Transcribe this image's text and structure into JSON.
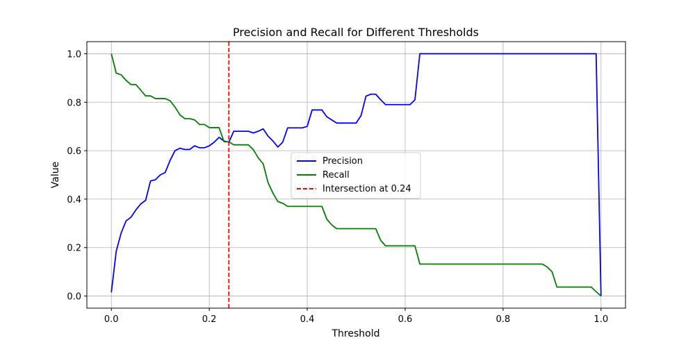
{
  "chart_data": {
    "type": "line",
    "title": "Precision and Recall for Different Thresholds",
    "xlabel": "Threshold",
    "ylabel": "Value",
    "xlim": [
      -0.05,
      1.05
    ],
    "ylim": [
      -0.05,
      1.05
    ],
    "xticks": [
      0.0,
      0.2,
      0.4,
      0.6,
      0.8,
      1.0
    ],
    "xtick_labels": [
      "0.0",
      "0.2",
      "0.4",
      "0.6",
      "0.8",
      "1.0"
    ],
    "yticks": [
      0.0,
      0.2,
      0.4,
      0.6,
      0.8,
      1.0
    ],
    "ytick_labels": [
      "0.0",
      "0.2",
      "0.4",
      "0.6",
      "0.8",
      "1.0"
    ],
    "grid": true,
    "legend_position": "center-right",
    "series": [
      {
        "name": "Precision",
        "color": "#0000ff",
        "points": [
          [
            0.0,
            0.015
          ],
          [
            0.01,
            0.185
          ],
          [
            0.02,
            0.26
          ],
          [
            0.03,
            0.31
          ],
          [
            0.04,
            0.325
          ],
          [
            0.05,
            0.355
          ],
          [
            0.06,
            0.38
          ],
          [
            0.07,
            0.395
          ],
          [
            0.08,
            0.475
          ],
          [
            0.09,
            0.48
          ],
          [
            0.1,
            0.5
          ],
          [
            0.11,
            0.51
          ],
          [
            0.12,
            0.56
          ],
          [
            0.13,
            0.6
          ],
          [
            0.14,
            0.61
          ],
          [
            0.15,
            0.605
          ],
          [
            0.16,
            0.605
          ],
          [
            0.17,
            0.62
          ],
          [
            0.18,
            0.612
          ],
          [
            0.19,
            0.612
          ],
          [
            0.2,
            0.62
          ],
          [
            0.21,
            0.635
          ],
          [
            0.22,
            0.655
          ],
          [
            0.23,
            0.64
          ],
          [
            0.24,
            0.635
          ],
          [
            0.25,
            0.68
          ],
          [
            0.26,
            0.68
          ],
          [
            0.27,
            0.68
          ],
          [
            0.28,
            0.68
          ],
          [
            0.29,
            0.673
          ],
          [
            0.3,
            0.68
          ],
          [
            0.31,
            0.69
          ],
          [
            0.32,
            0.66
          ],
          [
            0.33,
            0.64
          ],
          [
            0.34,
            0.615
          ],
          [
            0.35,
            0.635
          ],
          [
            0.36,
            0.694
          ],
          [
            0.37,
            0.694
          ],
          [
            0.38,
            0.694
          ],
          [
            0.39,
            0.694
          ],
          [
            0.4,
            0.7
          ],
          [
            0.41,
            0.768
          ],
          [
            0.42,
            0.768
          ],
          [
            0.43,
            0.768
          ],
          [
            0.44,
            0.74
          ],
          [
            0.45,
            0.727
          ],
          [
            0.46,
            0.714
          ],
          [
            0.47,
            0.714
          ],
          [
            0.48,
            0.714
          ],
          [
            0.49,
            0.714
          ],
          [
            0.5,
            0.714
          ],
          [
            0.51,
            0.745
          ],
          [
            0.52,
            0.825
          ],
          [
            0.53,
            0.833
          ],
          [
            0.54,
            0.833
          ],
          [
            0.55,
            0.81
          ],
          [
            0.56,
            0.79
          ],
          [
            0.57,
            0.79
          ],
          [
            0.58,
            0.79
          ],
          [
            0.59,
            0.79
          ],
          [
            0.6,
            0.79
          ],
          [
            0.61,
            0.79
          ],
          [
            0.62,
            0.81
          ],
          [
            0.63,
            1.0
          ],
          [
            0.64,
            1.0
          ],
          [
            0.7,
            1.0
          ],
          [
            0.8,
            1.0
          ],
          [
            0.9,
            1.0
          ],
          [
            0.98,
            1.0
          ],
          [
            0.99,
            1.0
          ],
          [
            1.0,
            0.0
          ]
        ]
      },
      {
        "name": "Recall",
        "color": "#008000",
        "points": [
          [
            0.0,
            1.0
          ],
          [
            0.01,
            0.92
          ],
          [
            0.02,
            0.913
          ],
          [
            0.03,
            0.89
          ],
          [
            0.04,
            0.873
          ],
          [
            0.05,
            0.873
          ],
          [
            0.06,
            0.85
          ],
          [
            0.07,
            0.826
          ],
          [
            0.08,
            0.826
          ],
          [
            0.09,
            0.815
          ],
          [
            0.1,
            0.815
          ],
          [
            0.11,
            0.815
          ],
          [
            0.12,
            0.806
          ],
          [
            0.13,
            0.78
          ],
          [
            0.14,
            0.748
          ],
          [
            0.15,
            0.732
          ],
          [
            0.16,
            0.732
          ],
          [
            0.17,
            0.727
          ],
          [
            0.18,
            0.708
          ],
          [
            0.19,
            0.708
          ],
          [
            0.2,
            0.695
          ],
          [
            0.21,
            0.695
          ],
          [
            0.22,
            0.695
          ],
          [
            0.23,
            0.637
          ],
          [
            0.24,
            0.637
          ],
          [
            0.25,
            0.624
          ],
          [
            0.26,
            0.624
          ],
          [
            0.27,
            0.624
          ],
          [
            0.28,
            0.624
          ],
          [
            0.29,
            0.604
          ],
          [
            0.3,
            0.57
          ],
          [
            0.31,
            0.546
          ],
          [
            0.32,
            0.468
          ],
          [
            0.33,
            0.425
          ],
          [
            0.34,
            0.39
          ],
          [
            0.35,
            0.383
          ],
          [
            0.36,
            0.37
          ],
          [
            0.37,
            0.37
          ],
          [
            0.38,
            0.37
          ],
          [
            0.39,
            0.37
          ],
          [
            0.4,
            0.37
          ],
          [
            0.41,
            0.37
          ],
          [
            0.42,
            0.37
          ],
          [
            0.43,
            0.37
          ],
          [
            0.44,
            0.317
          ],
          [
            0.45,
            0.294
          ],
          [
            0.46,
            0.278
          ],
          [
            0.47,
            0.278
          ],
          [
            0.48,
            0.278
          ],
          [
            0.49,
            0.278
          ],
          [
            0.5,
            0.278
          ],
          [
            0.51,
            0.278
          ],
          [
            0.52,
            0.278
          ],
          [
            0.53,
            0.278
          ],
          [
            0.54,
            0.278
          ],
          [
            0.55,
            0.23
          ],
          [
            0.56,
            0.207
          ],
          [
            0.57,
            0.207
          ],
          [
            0.58,
            0.207
          ],
          [
            0.59,
            0.207
          ],
          [
            0.6,
            0.207
          ],
          [
            0.61,
            0.207
          ],
          [
            0.62,
            0.207
          ],
          [
            0.63,
            0.132
          ],
          [
            0.7,
            0.132
          ],
          [
            0.8,
            0.132
          ],
          [
            0.88,
            0.132
          ],
          [
            0.89,
            0.12
          ],
          [
            0.9,
            0.1
          ],
          [
            0.91,
            0.037
          ],
          [
            0.92,
            0.037
          ],
          [
            0.98,
            0.037
          ],
          [
            0.99,
            0.018
          ],
          [
            1.0,
            0.0
          ]
        ]
      },
      {
        "name": "Intersection at 0.24",
        "color": "#ff0000",
        "style": "dashed",
        "vline_x": 0.24
      }
    ]
  }
}
